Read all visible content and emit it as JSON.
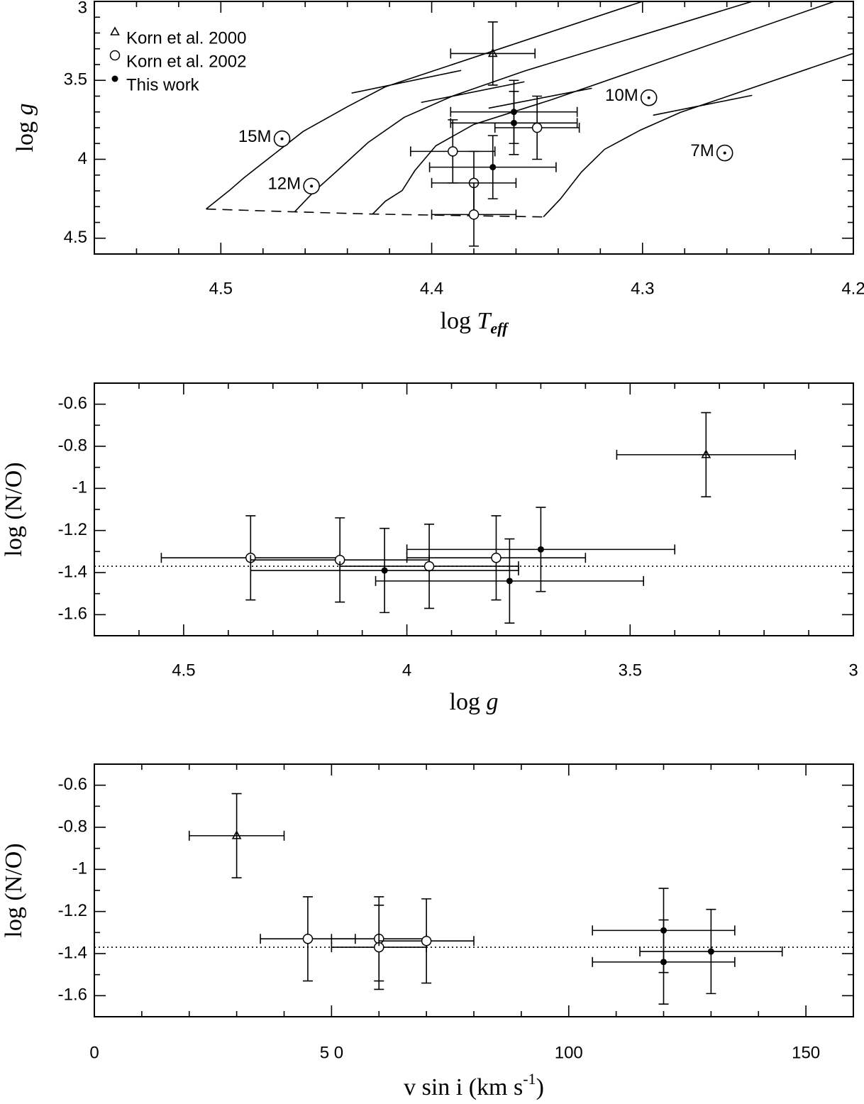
{
  "chart_data": [
    {
      "type": "scatter",
      "xlabel": "log ",
      "xlabel_var": "T",
      "xlabel_sub": "eff",
      "ylabel": "log ",
      "ylabel_var": "g",
      "xlim": [
        4.56,
        4.2
      ],
      "ylim": [
        4.6,
        3.0
      ],
      "xticks": [
        4.5,
        4.4,
        4.3,
        4.2
      ],
      "yticks": [
        3,
        3.5,
        4,
        4.5
      ],
      "xminorticks": [
        4.54,
        4.52,
        4.48,
        4.46,
        4.44,
        4.42,
        4.38,
        4.36,
        4.34,
        4.32,
        4.28,
        4.26,
        4.24,
        4.22
      ],
      "yminorticks": [
        3.1,
        3.2,
        3.3,
        3.4,
        3.6,
        3.7,
        3.8,
        3.9,
        4.1,
        4.2,
        4.3,
        4.4
      ],
      "legend": "upper left",
      "series": [
        {
          "name": "Korn et al. 2000",
          "marker": "triangle",
          "x": [
            4.371
          ],
          "y": [
            3.33
          ],
          "xerr": [
            0.02
          ],
          "yerr": [
            0.2
          ]
        },
        {
          "name": "Korn et al. 2002",
          "marker": "open-circle",
          "x": [
            4.35,
            4.39,
            4.38,
            4.38
          ],
          "y": [
            3.8,
            3.95,
            4.15,
            4.35
          ],
          "xerr": [
            0.02,
            0.02,
            0.02,
            0.02
          ],
          "yerr": [
            0.2,
            0.2,
            0.2,
            0.2
          ]
        },
        {
          "name": "This work",
          "marker": "filled-circle",
          "x": [
            4.361,
            4.361,
            4.371
          ],
          "y": [
            3.7,
            3.77,
            4.05
          ],
          "xerr": [
            0.03,
            0.03,
            0.03
          ],
          "yerr": [
            0.2,
            0.2,
            0.2
          ]
        }
      ],
      "lines": [
        {
          "style": "solid",
          "x": [
            4.507,
            4.496,
            4.489,
            4.477,
            4.461,
            4.44,
            4.422,
            4.3,
            null,
            4.438,
            4.386
          ],
          "y": [
            4.315,
            4.198,
            4.117,
            3.991,
            3.824,
            3.667,
            3.541,
            3.0,
            null,
            3.581,
            3.437
          ]
        },
        {
          "style": "solid",
          "x": [
            4.465,
            4.456,
            4.444,
            4.43,
            4.413,
            4.39,
            4.356,
            4.248,
            null,
            4.405,
            4.356
          ],
          "y": [
            4.333,
            4.207,
            4.063,
            3.892,
            3.734,
            3.599,
            3.441,
            3.0,
            null,
            3.64,
            3.509
          ]
        },
        {
          "style": "solid",
          "x": [
            4.428,
            4.422,
            4.414,
            4.408,
            4.398,
            4.38,
            4.343,
            4.209,
            null,
            4.373,
            4.324
          ],
          "y": [
            4.347,
            4.266,
            4.198,
            4.072,
            3.914,
            3.779,
            3.622,
            3.0,
            null,
            3.676,
            3.55
          ]
        },
        {
          "style": "solid",
          "x": [
            4.347,
            4.339,
            4.329,
            4.318,
            4.301,
            4.282,
            4.2,
            null,
            4.295,
            4.248
          ],
          "y": [
            4.365,
            4.252,
            4.081,
            3.937,
            3.815,
            3.703,
            3.329,
            null,
            3.721,
            3.595
          ]
        },
        {
          "style": "dashed",
          "x": [
            4.507,
            4.465,
            4.428,
            4.347
          ],
          "y": [
            4.315,
            4.333,
            4.347,
            4.365
          ]
        }
      ],
      "annotations": [
        {
          "text": "15M",
          "x": 4.471,
          "y": 3.87
        },
        {
          "text": "12M",
          "x": 4.457,
          "y": 4.17
        },
        {
          "text": "10M",
          "x": 4.297,
          "y": 3.61
        },
        {
          "text": "7M",
          "x": 4.261,
          "y": 3.96
        }
      ]
    },
    {
      "type": "scatter",
      "xlabel": "log ",
      "xlabel_var": "g",
      "ylabel": "log (N/O)",
      "xlim": [
        4.7,
        3.0
      ],
      "ylim": [
        -1.7,
        -0.5
      ],
      "xticks": [
        4.5,
        4,
        3.5,
        3
      ],
      "yticks": [
        -0.6,
        -0.8,
        -1,
        -1.2,
        -1.4,
        -1.6
      ],
      "xminorticks": [
        4.6,
        4.4,
        4.3,
        4.2,
        4.1,
        3.9,
        3.8,
        3.7,
        3.6,
        3.4,
        3.3,
        3.2,
        3.1
      ],
      "yminorticks": [
        -0.7,
        -0.9,
        -1.1,
        -1.3,
        -1.5
      ],
      "hline": {
        "y": -1.37,
        "style": "dotted"
      },
      "series": [
        {
          "marker": "triangle",
          "x": [
            3.33
          ],
          "y": [
            -0.84
          ],
          "xerr": [
            0.2
          ],
          "yerr": [
            0.2
          ]
        },
        {
          "marker": "open-circle",
          "x": [
            4.35,
            4.15,
            3.95,
            3.8
          ],
          "y": [
            -1.33,
            -1.34,
            -1.37,
            -1.33
          ],
          "xerr": [
            0.2,
            0.2,
            0.2,
            0.2
          ],
          "yerr": [
            0.2,
            0.2,
            0.2,
            0.2
          ]
        },
        {
          "marker": "filled-circle",
          "x": [
            4.05,
            3.77,
            3.7
          ],
          "y": [
            -1.39,
            -1.44,
            -1.29
          ],
          "xerr": [
            0.3,
            0.3,
            0.3
          ],
          "yerr": [
            0.2,
            0.2,
            0.2
          ]
        }
      ]
    },
    {
      "type": "scatter",
      "xlabel": "v sin i (km s",
      "xlabel_sup": "-1",
      "xlabel_end": ")",
      "ylabel": "log (N/O)",
      "xlim": [
        0,
        160
      ],
      "ylim": [
        -1.7,
        -0.5
      ],
      "xticks": [
        0,
        {
          "value": 50,
          "label": "5 0"
        },
        100,
        150
      ],
      "yticks": [
        -0.6,
        -0.8,
        -1,
        -1.2,
        -1.4,
        -1.6
      ],
      "xminorticks": [
        10,
        20,
        30,
        40,
        60,
        70,
        80,
        90,
        110,
        120,
        130,
        140
      ],
      "yminorticks": [
        -0.7,
        -0.9,
        -1.1,
        -1.3,
        -1.5
      ],
      "hline": {
        "y": -1.37,
        "style": "dotted"
      },
      "series": [
        {
          "marker": "triangle",
          "x": [
            30
          ],
          "y": [
            -0.84
          ],
          "xerr": [
            10
          ],
          "yerr": [
            0.2
          ]
        },
        {
          "marker": "open-circle",
          "x": [
            45,
            60,
            60,
            70
          ],
          "y": [
            -1.33,
            -1.33,
            -1.37,
            -1.34
          ],
          "xerr": [
            10,
            10,
            10,
            10
          ],
          "yerr": [
            0.2,
            0.2,
            0.2,
            0.2
          ]
        },
        {
          "marker": "filled-circle",
          "x": [
            120,
            120,
            130
          ],
          "y": [
            -1.29,
            -1.44,
            -1.39
          ],
          "xerr": [
            15,
            15,
            15
          ],
          "yerr": [
            0.2,
            0.2,
            0.2
          ]
        }
      ]
    }
  ]
}
